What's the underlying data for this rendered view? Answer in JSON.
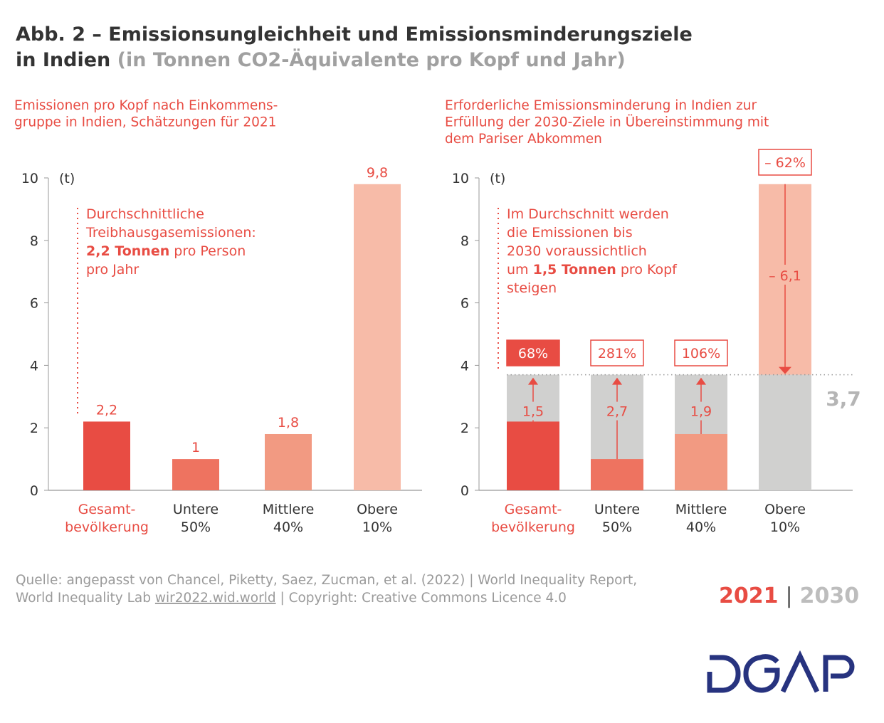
{
  "title": {
    "line1": "Abb. 2 – Emissionsungleichheit und Emissionsminderungsziele",
    "line2_bold": "in Indien",
    "line2_grey": "(in Tonnen CO2-Äquivalente pro Kopf und Jahr)"
  },
  "colors": {
    "red": "#e84c43",
    "lower50": "#ee7360",
    "middle40": "#f29a82",
    "top10": "#f7bba8",
    "target_grey": "#d0d0cf",
    "logo_blue": "#27337f"
  },
  "chart_data": [
    {
      "type": "bar",
      "subtitle_lines": [
        "Emissionen pro Kopf nach Einkommens-",
        "gruppe in Indien, Schätzungen für 2021"
      ],
      "ylabel": "(t)",
      "ylim": [
        0,
        10
      ],
      "yticks": [
        "0",
        "2",
        "4",
        "6",
        "8",
        "10"
      ],
      "categories": [
        [
          "Gesamt-",
          "bevölkerung"
        ],
        [
          "Untere",
          "50%"
        ],
        [
          "Mittlere",
          "40%"
        ],
        [
          "Obere",
          "10%"
        ]
      ],
      "values": [
        2.2,
        1,
        1.8,
        9.8
      ],
      "value_labels": [
        "2,2",
        "1",
        "1,8",
        "9,8"
      ],
      "annotation": [
        [
          {
            "text": "Durchschnittliche",
            "bold": false
          }
        ],
        [
          {
            "text": "Treibhausgasemissionen:",
            "bold": false
          }
        ],
        [
          {
            "text": "2,2 Tonnen",
            "bold": true
          },
          {
            "text": " pro Person",
            "bold": false
          }
        ],
        [
          {
            "text": "pro Jahr",
            "bold": false
          }
        ]
      ]
    },
    {
      "type": "bar",
      "subtitle_lines": [
        "Erforderliche Emissionsminderung in Indien zur",
        "Erfüllung der 2030-Ziele in Übereinstimmung mit",
        "dem Pariser Abkommen"
      ],
      "ylabel": "(t)",
      "ylim": [
        0,
        10
      ],
      "yticks": [
        "0",
        "2",
        "4",
        "6",
        "8",
        "10"
      ],
      "categories": [
        [
          "Gesamt-",
          "bevölkerung"
        ],
        [
          "Untere",
          "50%"
        ],
        [
          "Mittlere",
          "40%"
        ],
        [
          "Obere",
          "10%"
        ]
      ],
      "values_2021": [
        2.2,
        1,
        1.8,
        9.8
      ],
      "target_2030": 3.7,
      "target_label": "3,7",
      "change": [
        1.5,
        2.7,
        1.9,
        -6.1
      ],
      "change_labels": [
        "1,5",
        "2,7",
        "1,9",
        "– 6,1"
      ],
      "change_percent": [
        "68%",
        "281%",
        "106%",
        "– 62%"
      ],
      "annotation": [
        [
          {
            "text": "Im Durchschnitt werden",
            "bold": false
          }
        ],
        [
          {
            "text": "die Emissionen bis",
            "bold": false
          }
        ],
        [
          {
            "text": "2030 voraussichtlich",
            "bold": false
          }
        ],
        [
          {
            "text": "um ",
            "bold": false
          },
          {
            "text": "1,5 Tonnen",
            "bold": true
          },
          {
            "text": " pro Kopf",
            "bold": false
          }
        ],
        [
          {
            "text": "steigen",
            "bold": false
          }
        ]
      ]
    }
  ],
  "source": {
    "line1": "Quelle: angepasst von Chancel, Piketty, Saez, Zucman, et al. (2022) | World Inequality Report,",
    "line2_pre": "World Inequality Lab ",
    "line2_link": "wir2022.wid.world",
    "line2_post": " | Copyright: Creative Commons Licence 4.0"
  },
  "legend": {
    "year1": "2021",
    "sep": "|",
    "year2": "2030"
  },
  "logo": "DGAP"
}
